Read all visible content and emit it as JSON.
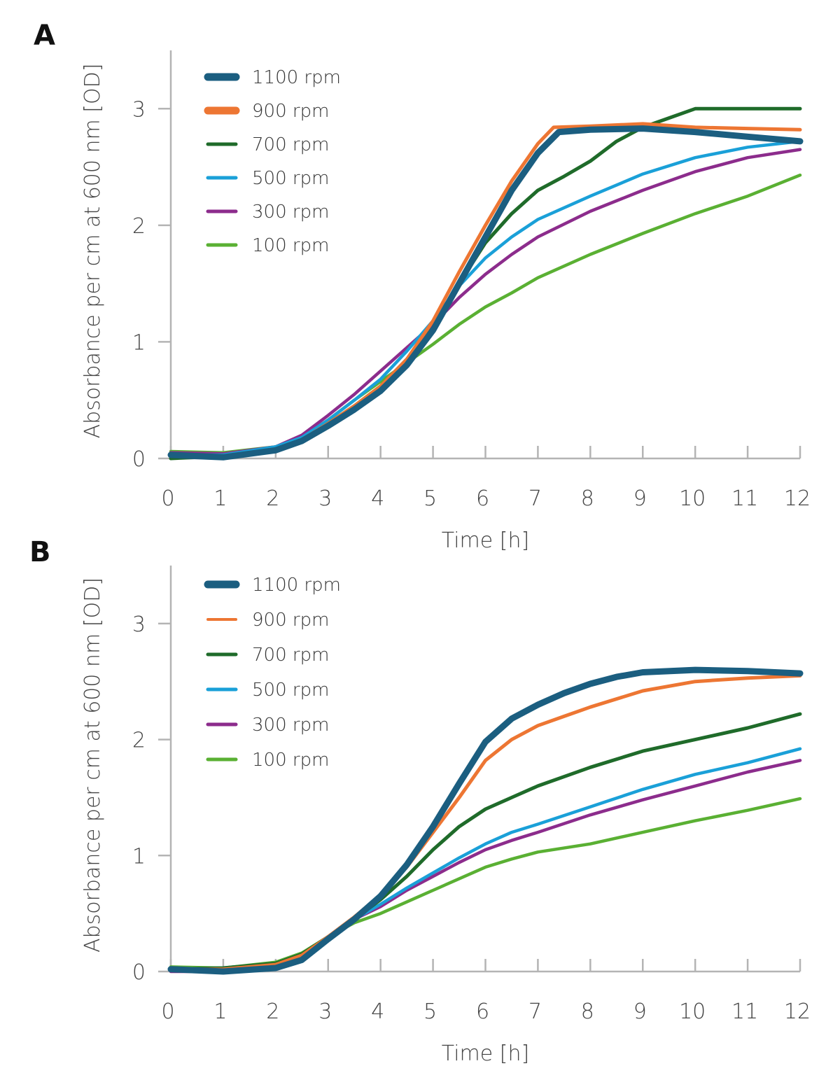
{
  "chart_data": [
    {
      "panel": "A",
      "type": "line",
      "xlabel": "Time [h]",
      "ylabel": "Absorbance per cm at 600 nm [OD]",
      "xlim": [
        0,
        12
      ],
      "ylim": [
        0,
        3.5
      ],
      "xticks": [
        0,
        1,
        2,
        3,
        4,
        5,
        6,
        7,
        8,
        9,
        10,
        11,
        12
      ],
      "yticks": [
        0,
        1,
        2,
        3
      ],
      "legend_position": "top-left",
      "grid": false,
      "series": [
        {
          "name": "1100 rpm",
          "color": "#1b5e80",
          "x": [
            0,
            1,
            2,
            2.5,
            3,
            3.5,
            4,
            4.5,
            5,
            5.5,
            6,
            6.5,
            7,
            7.4,
            8,
            9,
            10,
            11,
            12
          ],
          "y": [
            0.03,
            0.01,
            0.07,
            0.15,
            0.28,
            0.42,
            0.58,
            0.8,
            1.1,
            1.5,
            1.9,
            2.3,
            2.62,
            2.8,
            2.82,
            2.83,
            2.8,
            2.76,
            2.72
          ]
        },
        {
          "name": "900 rpm",
          "color": "#ed7633",
          "x": [
            0,
            1,
            2,
            2.5,
            3,
            3.5,
            4,
            4.5,
            5,
            5.5,
            6,
            6.5,
            7,
            7.3,
            8,
            9,
            10,
            11,
            12
          ],
          "y": [
            0.03,
            0.02,
            0.08,
            0.16,
            0.3,
            0.45,
            0.62,
            0.85,
            1.18,
            1.6,
            2.0,
            2.38,
            2.7,
            2.84,
            2.85,
            2.87,
            2.84,
            2.83,
            2.82
          ]
        },
        {
          "name": "700 rpm",
          "color": "#1f6b2a",
          "x": [
            0,
            1,
            2,
            2.5,
            3,
            3.5,
            4,
            4.5,
            5,
            5.5,
            6,
            6.5,
            7,
            7.5,
            8,
            8.5,
            9,
            9.5,
            10,
            11,
            12
          ],
          "y": [
            0.0,
            0.02,
            0.08,
            0.15,
            0.3,
            0.45,
            0.62,
            0.85,
            1.12,
            1.5,
            1.85,
            2.1,
            2.3,
            2.42,
            2.55,
            2.72,
            2.84,
            2.92,
            3.0,
            3.0,
            3.0
          ]
        },
        {
          "name": "500 rpm",
          "color": "#1aa0d8",
          "x": [
            0,
            1,
            2,
            2.5,
            3,
            3.5,
            4,
            4.5,
            5,
            5.5,
            6,
            6.5,
            7,
            8,
            9,
            10,
            11,
            12
          ],
          "y": [
            0.03,
            0.03,
            0.1,
            0.18,
            0.33,
            0.5,
            0.68,
            0.92,
            1.18,
            1.48,
            1.72,
            1.9,
            2.05,
            2.25,
            2.44,
            2.58,
            2.67,
            2.72
          ]
        },
        {
          "name": "300 rpm",
          "color": "#8c2c8c",
          "x": [
            0,
            1,
            2,
            2.5,
            3,
            3.5,
            4,
            4.5,
            5,
            5.5,
            6,
            6.5,
            7,
            8,
            9,
            10,
            11,
            12
          ],
          "y": [
            0.05,
            0.04,
            0.1,
            0.2,
            0.37,
            0.55,
            0.75,
            0.95,
            1.15,
            1.38,
            1.58,
            1.75,
            1.9,
            2.12,
            2.3,
            2.46,
            2.58,
            2.65
          ]
        },
        {
          "name": "100 rpm",
          "color": "#5ab033",
          "x": [
            0,
            1,
            2,
            2.5,
            3,
            3.5,
            4,
            4.5,
            5,
            5.5,
            6,
            6.5,
            7,
            8,
            9,
            10,
            11,
            12
          ],
          "y": [
            0.06,
            0.05,
            0.1,
            0.18,
            0.33,
            0.5,
            0.66,
            0.82,
            0.98,
            1.15,
            1.3,
            1.42,
            1.55,
            1.75,
            1.93,
            2.1,
            2.25,
            2.43
          ]
        }
      ]
    },
    {
      "panel": "B",
      "type": "line",
      "xlabel": "Time [h]",
      "ylabel": "Absorbance per cm at 600 nm [OD]",
      "xlim": [
        0,
        12
      ],
      "ylim": [
        0,
        3.5
      ],
      "xticks": [
        0,
        1,
        2,
        3,
        4,
        5,
        6,
        7,
        8,
        9,
        10,
        11,
        12
      ],
      "yticks": [
        0,
        1,
        2,
        3
      ],
      "legend_position": "top-left",
      "grid": false,
      "series": [
        {
          "name": "1100 rpm",
          "color": "#1b5e80",
          "x": [
            0,
            1,
            2,
            2.5,
            3,
            3.5,
            4,
            4.5,
            5,
            5.5,
            6,
            6.5,
            7,
            7.5,
            8,
            8.5,
            9,
            10,
            11,
            12
          ],
          "y": [
            0.02,
            0.0,
            0.03,
            0.1,
            0.28,
            0.45,
            0.65,
            0.92,
            1.25,
            1.62,
            1.98,
            2.18,
            2.3,
            2.4,
            2.48,
            2.54,
            2.58,
            2.6,
            2.59,
            2.57
          ]
        },
        {
          "name": "900 rpm",
          "color": "#ed7633",
          "x": [
            0,
            1,
            2,
            2.5,
            3,
            3.5,
            4,
            4.5,
            5,
            5.5,
            6,
            6.5,
            7,
            7.5,
            8,
            9,
            10,
            11,
            12
          ],
          "y": [
            0.02,
            0.02,
            0.06,
            0.14,
            0.3,
            0.47,
            0.66,
            0.9,
            1.2,
            1.5,
            1.82,
            2.0,
            2.12,
            2.2,
            2.28,
            2.42,
            2.5,
            2.53,
            2.55
          ]
        },
        {
          "name": "700 rpm",
          "color": "#1f6b2a",
          "x": [
            0,
            1,
            2,
            2.5,
            3,
            3.5,
            4,
            4.5,
            5,
            5.5,
            6,
            6.5,
            7,
            8,
            9,
            10,
            11,
            12
          ],
          "y": [
            0.02,
            0.03,
            0.07,
            0.15,
            0.3,
            0.45,
            0.62,
            0.82,
            1.05,
            1.25,
            1.4,
            1.5,
            1.6,
            1.76,
            1.9,
            2.0,
            2.1,
            2.22
          ]
        },
        {
          "name": "500 rpm",
          "color": "#1aa0d8",
          "x": [
            0,
            1,
            2,
            2.5,
            3,
            3.5,
            4,
            4.5,
            5,
            5.5,
            6,
            6.5,
            7,
            8,
            9,
            10,
            11,
            12
          ],
          "y": [
            0.02,
            0.0,
            0.07,
            0.15,
            0.3,
            0.45,
            0.58,
            0.72,
            0.85,
            0.98,
            1.1,
            1.2,
            1.27,
            1.42,
            1.57,
            1.7,
            1.8,
            1.92
          ]
        },
        {
          "name": "300 rpm",
          "color": "#8c2c8c",
          "x": [
            0,
            1,
            2,
            2.5,
            3,
            3.5,
            4,
            4.5,
            5,
            5.5,
            6,
            6.5,
            7,
            8,
            9,
            10,
            11,
            12
          ],
          "y": [
            0.0,
            0.0,
            0.05,
            0.14,
            0.3,
            0.45,
            0.56,
            0.7,
            0.82,
            0.94,
            1.05,
            1.13,
            1.2,
            1.35,
            1.48,
            1.6,
            1.72,
            1.82
          ]
        },
        {
          "name": "100 rpm",
          "color": "#5ab033",
          "x": [
            0,
            1,
            2,
            2.5,
            3,
            3.5,
            4,
            4.5,
            5,
            5.5,
            6,
            6.5,
            7,
            8,
            9,
            10,
            11,
            12
          ],
          "y": [
            0.04,
            0.03,
            0.08,
            0.16,
            0.3,
            0.42,
            0.5,
            0.6,
            0.7,
            0.8,
            0.9,
            0.97,
            1.03,
            1.1,
            1.2,
            1.3,
            1.39,
            1.49
          ]
        }
      ]
    }
  ]
}
